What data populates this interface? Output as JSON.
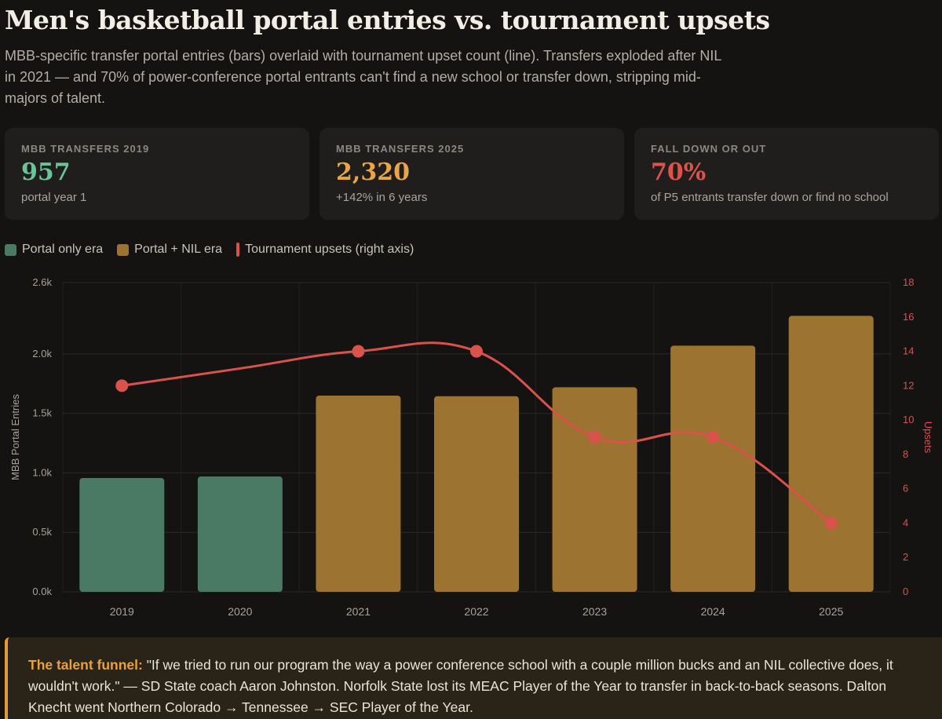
{
  "title": "Men's basketball portal entries vs. tournament upsets",
  "subtitle": "MBB-specific transfer portal entries (bars) overlaid with tournament upset count (line). Transfers exploded after NIL in 2021 — and 70% of power-conference portal entrants can't find a new school or transfer down, stripping mid-majors of talent.",
  "cards": [
    {
      "label": "MBB TRANSFERS 2019",
      "value": "957",
      "note": "portal year 1",
      "color": "#6cc39a"
    },
    {
      "label": "MBB TRANSFERS 2025",
      "value": "2,320",
      "note": "+142% in 6 years",
      "color": "#e9a547"
    },
    {
      "label": "FALL DOWN OR OUT",
      "value": "70%",
      "note": "of P5 entrants transfer down or find no school",
      "color": "#e0514b"
    }
  ],
  "legend": {
    "portal_only": "Portal only era",
    "portal_nil": "Portal + NIL era",
    "upsets": "Tournament upsets (right axis)"
  },
  "colors": {
    "portal_only": "#4a7a63",
    "portal_nil": "#9c7330",
    "upsets": "#d9524b"
  },
  "chart_data": {
    "type": "bar",
    "categories": [
      "2019",
      "2020",
      "2021",
      "2022",
      "2023",
      "2024",
      "2025"
    ],
    "series": [
      {
        "name": "MBB Portal Entries",
        "values": [
          957,
          970,
          1650,
          1645,
          1720,
          2070,
          2320
        ],
        "eras": [
          "portal_only",
          "portal_only",
          "portal_nil",
          "portal_nil",
          "portal_nil",
          "portal_nil",
          "portal_nil"
        ]
      },
      {
        "name": "Tournament upsets",
        "type": "line",
        "axis": "right",
        "values": [
          12,
          13,
          14,
          14,
          9,
          9,
          4
        ],
        "points": [
          true,
          false,
          true,
          true,
          true,
          true,
          true
        ]
      }
    ],
    "ylabel": "MBB Portal Entries",
    "y2label": "Upsets",
    "ylim": [
      0,
      2600
    ],
    "y2lim": [
      0,
      18
    ],
    "yticks": [
      "0.0k",
      "0.5k",
      "1.0k",
      "1.5k",
      "2.0k",
      "2.6k"
    ],
    "ytick_values": [
      0,
      500,
      1000,
      1500,
      2000,
      2600
    ],
    "y2ticks": [
      "0",
      "2",
      "4",
      "6",
      "8",
      "10",
      "12",
      "14",
      "16",
      "18"
    ],
    "grid": true
  },
  "callout": {
    "lead": "The talent funnel:",
    "text": " \"If we tried to run our program the way a power conference school with a couple million bucks and an NIL collective does, it wouldn't work.\" — SD State coach Aaron Johnston. Norfolk State lost its MEAC Player of the Year to transfer in back-to-back seasons. Dalton Knecht went Northern Colorado → Tennessee → SEC Player of the Year."
  }
}
